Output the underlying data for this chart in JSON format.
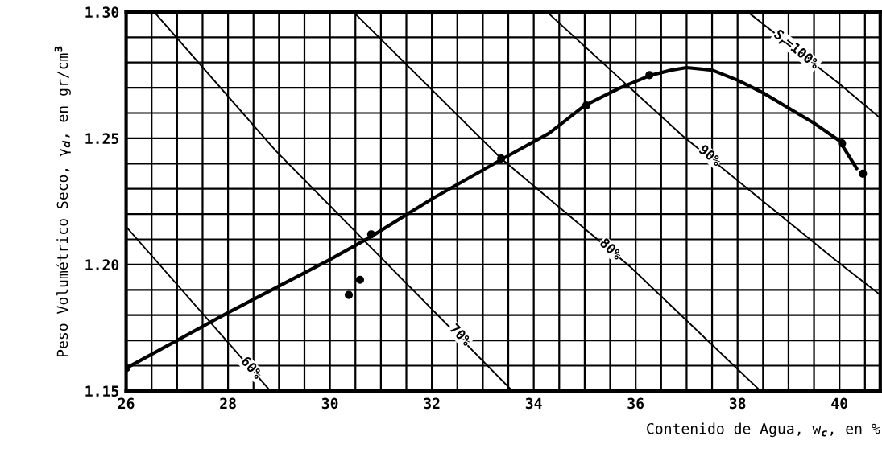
{
  "chart_data": {
    "type": "line",
    "xlabel": "Contenido de Agua, w$_{c}$, en %",
    "ylabel": "Peso Volumétrico Seco, γ$_{d}$, en gr/cm$^{3}$",
    "xlim": [
      26,
      40.8
    ],
    "ylim": [
      1.15,
      1.3
    ],
    "xticks": [
      26,
      {
        "value": 26.5,
        "label": null
      },
      {
        "value": 27,
        "label": null
      },
      {
        "value": 27.5,
        "label": null
      },
      28,
      {
        "value": 28.5,
        "label": null
      },
      {
        "value": 29,
        "label": null
      },
      {
        "value": 29.5,
        "label": null
      },
      30,
      {
        "value": 30.5,
        "label": null
      },
      {
        "value": 31,
        "label": null
      },
      {
        "value": 31.5,
        "label": null
      },
      32,
      {
        "value": 32.5,
        "label": null
      },
      {
        "value": 33,
        "label": null
      },
      {
        "value": 33.5,
        "label": null
      },
      34,
      {
        "value": 34.5,
        "label": null
      },
      {
        "value": 35,
        "label": null
      },
      {
        "value": 35.5,
        "label": null
      },
      36,
      {
        "value": 36.5,
        "label": null
      },
      {
        "value": 37,
        "label": null
      },
      {
        "value": 37.5,
        "label": null
      },
      38,
      {
        "value": 38.5,
        "label": null
      },
      {
        "value": 39,
        "label": null
      },
      {
        "value": 39.5,
        "label": null
      },
      40,
      {
        "value": 40.5,
        "label": null
      }
    ],
    "yticks": [
      {
        "value": 1.15,
        "label": "1.15"
      },
      {
        "value": 1.16,
        "label": null
      },
      {
        "value": 1.17,
        "label": null
      },
      {
        "value": 1.18,
        "label": null
      },
      {
        "value": 1.19,
        "label": null
      },
      {
        "value": 1.2,
        "label": "1.20"
      },
      {
        "value": 1.21,
        "label": null
      },
      {
        "value": 1.22,
        "label": null
      },
      {
        "value": 1.23,
        "label": null
      },
      {
        "value": 1.24,
        "label": null
      },
      {
        "value": 1.25,
        "label": "1.25"
      },
      {
        "value": 1.26,
        "label": null
      },
      {
        "value": 1.27,
        "label": null
      },
      {
        "value": 1.28,
        "label": null
      },
      {
        "value": 1.29,
        "label": null
      },
      {
        "value": 1.3,
        "label": "1.30"
      }
    ],
    "grid": true,
    "series": [
      {
        "color": "#000000",
        "x": [
          26,
          27.92,
          28.83
        ],
        "values": [
          1.215,
          1.171,
          1.15
        ]
      },
      {
        "color": "#000000",
        "x": [
          26.55,
          28.94,
          33.58
        ],
        "values": [
          1.3,
          1.245,
          1.15
        ]
      },
      {
        "color": "#000000",
        "x": [
          30.46,
          33.36,
          35.9,
          38.45
        ],
        "values": [
          1.3,
          1.242,
          1.199,
          1.15
        ]
      },
      {
        "color": "#000000",
        "x": [
          34.26,
          36.92,
          39.97,
          40.8
        ],
        "values": [
          1.3,
          1.251,
          1.201,
          1.188
        ]
      },
      {
        "color": "#000000",
        "x": [
          38.2,
          39.97,
          40.8
        ],
        "values": [
          1.3,
          1.272,
          1.258
        ]
      },
      {
        "color": "#000000",
        "x": [
          26,
          28,
          30,
          30.8,
          32,
          33.4,
          34.3,
          35,
          35.7,
          36.3,
          36.7,
          37,
          37.5,
          38,
          38.5,
          39,
          39.5,
          40,
          40.34
        ],
        "values": [
          1.159,
          1.181,
          1.202,
          1.211,
          1.226,
          1.242,
          1.252,
          1.263,
          1.27,
          1.275,
          1.277,
          1.278,
          1.277,
          1.273,
          1.268,
          1.262,
          1.256,
          1.249,
          1.238
        ]
      },
      {
        "type": "scatter",
        "color": "#000000",
        "marker": "circle",
        "x": [
          26,
          30.37,
          30.59,
          30.81,
          33.36,
          35.03,
          36.27,
          40.05,
          40.46
        ],
        "values": [
          1.159,
          1.188,
          1.194,
          1.212,
          1.242,
          1.263,
          1.275,
          1.248,
          1.236
        ]
      }
    ],
    "annotations": [
      {
        "text": "60%",
        "x": 28.45,
        "y": 1.159
      },
      {
        "text": "70%",
        "x": 32.55,
        "y": 1.172
      },
      {
        "text": "80%",
        "x": 35.5,
        "y": 1.206
      },
      {
        "text": "90%",
        "x": 37.45,
        "y": 1.243
      },
      {
        "text": "S$_{r}$=100%",
        "x": 39.15,
        "y": 1.285
      }
    ]
  }
}
